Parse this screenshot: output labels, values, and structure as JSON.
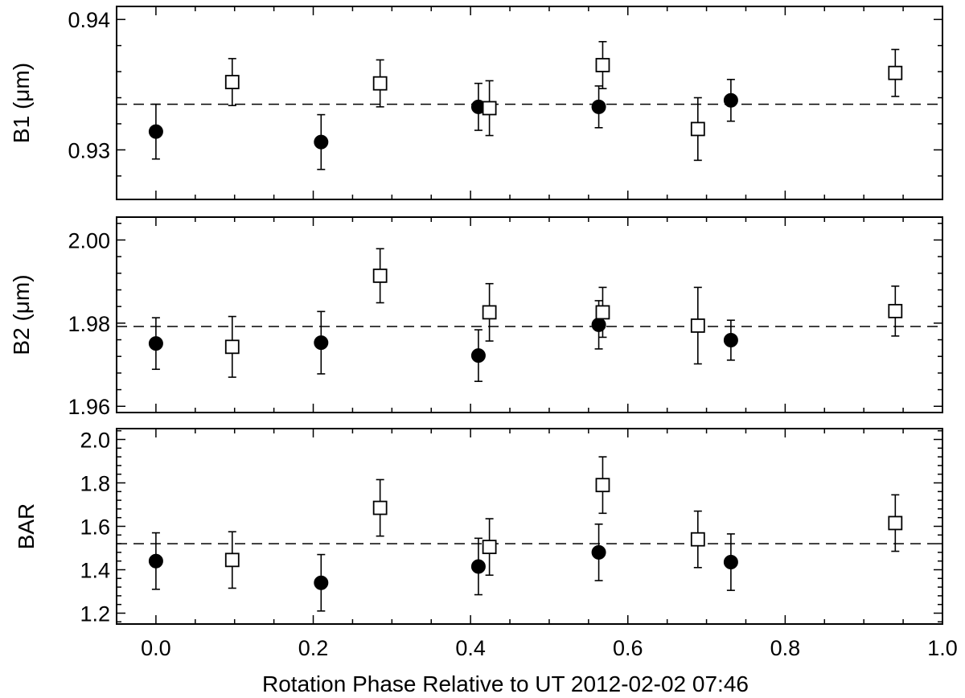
{
  "chart_data": [
    {
      "type": "scatter",
      "ylabel": "B1  (μm)",
      "ylim": [
        0.9262,
        0.941
      ],
      "yticks": [
        0.93,
        0.94
      ],
      "ytick_labels": [
        "0.93",
        "0.94"
      ],
      "xlim": [
        -0.05,
        1.0
      ],
      "reference_line": 0.9335,
      "series": [
        {
          "marker": "filled-circle",
          "points": [
            {
              "x": 0.0,
              "y": 0.9314,
              "err": 0.0021
            },
            {
              "x": 0.21,
              "y": 0.9306,
              "err": 0.0021
            },
            {
              "x": 0.41,
              "y": 0.9333,
              "err": 0.0018
            },
            {
              "x": 0.563,
              "y": 0.9333,
              "err": 0.0016
            },
            {
              "x": 0.731,
              "y": 0.9338,
              "err": 0.0016
            }
          ]
        },
        {
          "marker": "open-square",
          "points": [
            {
              "x": 0.097,
              "y": 0.9352,
              "err": 0.0018
            },
            {
              "x": 0.285,
              "y": 0.9351,
              "err": 0.0018
            },
            {
              "x": 0.424,
              "y": 0.9332,
              "err": 0.0021
            },
            {
              "x": 0.568,
              "y": 0.9365,
              "err": 0.0018
            },
            {
              "x": 0.689,
              "y": 0.9316,
              "err": 0.0024
            },
            {
              "x": 0.94,
              "y": 0.9359,
              "err": 0.0018
            }
          ]
        }
      ]
    },
    {
      "type": "scatter",
      "ylabel": "B2 (μm)",
      "ylim": [
        1.9585,
        2.0055
      ],
      "yticks": [
        1.96,
        1.98,
        2.0
      ],
      "ytick_labels": [
        "1.96",
        "1.98",
        "2.00"
      ],
      "xlim": [
        -0.05,
        1.0
      ],
      "reference_line": 1.9792,
      "series": [
        {
          "marker": "filled-circle",
          "points": [
            {
              "x": 0.0,
              "y": 1.9751,
              "err": 0.0062
            },
            {
              "x": 0.21,
              "y": 1.9753,
              "err": 0.0075
            },
            {
              "x": 0.41,
              "y": 1.9722,
              "err": 0.0062
            },
            {
              "x": 0.563,
              "y": 1.9796,
              "err": 0.0058
            },
            {
              "x": 0.731,
              "y": 1.9759,
              "err": 0.0048
            }
          ]
        },
        {
          "marker": "open-square",
          "points": [
            {
              "x": 0.097,
              "y": 1.9743,
              "err": 0.0073
            },
            {
              "x": 0.285,
              "y": 1.9914,
              "err": 0.0065
            },
            {
              "x": 0.424,
              "y": 1.9826,
              "err": 0.0069
            },
            {
              "x": 0.568,
              "y": 1.9826,
              "err": 0.006
            },
            {
              "x": 0.689,
              "y": 1.9794,
              "err": 0.0092
            },
            {
              "x": 0.94,
              "y": 1.9829,
              "err": 0.006
            }
          ]
        }
      ]
    },
    {
      "type": "scatter",
      "ylabel": "BAR",
      "ylim": [
        1.15,
        2.05
      ],
      "yticks": [
        1.2,
        1.4,
        1.6,
        1.8,
        2.0
      ],
      "ytick_labels": [
        "1.2",
        "1.4",
        "1.6",
        "1.8",
        "2.0"
      ],
      "xlim": [
        -0.05,
        1.0
      ],
      "reference_line": 1.52,
      "xlabel": "Rotation Phase Relative to UT 2012-02-02 07:46",
      "xticks": [
        0.0,
        0.2,
        0.4,
        0.6,
        0.8,
        1.0
      ],
      "xtick_labels": [
        "0.0",
        "0.2",
        "0.4",
        "0.6",
        "0.8",
        "1.0"
      ],
      "series": [
        {
          "marker": "filled-circle",
          "points": [
            {
              "x": 0.0,
              "y": 1.44,
              "err": 0.13
            },
            {
              "x": 0.21,
              "y": 1.34,
              "err": 0.13
            },
            {
              "x": 0.41,
              "y": 1.415,
              "err": 0.13
            },
            {
              "x": 0.563,
              "y": 1.48,
              "err": 0.13
            },
            {
              "x": 0.731,
              "y": 1.435,
              "err": 0.13
            }
          ]
        },
        {
          "marker": "open-square",
          "points": [
            {
              "x": 0.097,
              "y": 1.445,
              "err": 0.13
            },
            {
              "x": 0.285,
              "y": 1.685,
              "err": 0.13
            },
            {
              "x": 0.424,
              "y": 1.505,
              "err": 0.13
            },
            {
              "x": 0.568,
              "y": 1.79,
              "err": 0.13
            },
            {
              "x": 0.689,
              "y": 1.54,
              "err": 0.13
            },
            {
              "x": 0.94,
              "y": 1.615,
              "err": 0.13
            }
          ]
        }
      ]
    }
  ]
}
